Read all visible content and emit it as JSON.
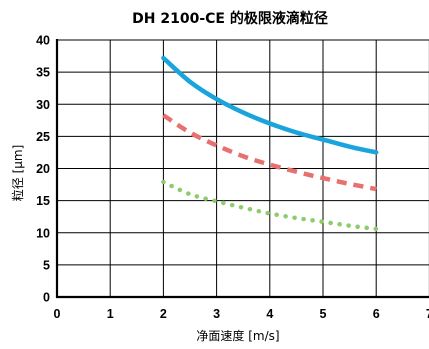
{
  "chart_data": {
    "type": "line",
    "title": "DH 2100-CE 的极限液滴粒径",
    "xlabel": "净面速度 [m/s]",
    "ylabel": "粒径 [μm]",
    "xlim": [
      0,
      7
    ],
    "ylim": [
      0,
      40
    ],
    "x_ticks": [
      "0",
      "1",
      "2",
      "3",
      "4",
      "5",
      "6",
      "7"
    ],
    "y_ticks": [
      "0",
      "5",
      "10",
      "15",
      "20",
      "25",
      "30",
      "35",
      "40"
    ],
    "grid": true,
    "legend": "none",
    "series": [
      {
        "color": "#1aa4dc",
        "style": "solid",
        "points": [
          [
            2.0,
            37.2
          ],
          [
            2.5,
            33.5
          ],
          [
            3.0,
            30.8
          ],
          [
            3.5,
            28.7
          ],
          [
            4.0,
            27.0
          ],
          [
            4.5,
            25.6
          ],
          [
            5.0,
            24.5
          ],
          [
            5.5,
            23.4
          ],
          [
            6.0,
            22.5
          ]
        ]
      },
      {
        "color": "#e8706e",
        "style": "dashed",
        "points": [
          [
            2.0,
            28.3
          ],
          [
            2.5,
            25.6
          ],
          [
            3.0,
            23.6
          ],
          [
            3.5,
            21.9
          ],
          [
            4.0,
            20.6
          ],
          [
            4.5,
            19.5
          ],
          [
            5.0,
            18.5
          ],
          [
            5.5,
            17.6
          ],
          [
            6.0,
            16.8
          ]
        ]
      },
      {
        "color": "#8ccc6c",
        "style": "dotted",
        "points": [
          [
            2.0,
            17.9
          ],
          [
            2.5,
            16.0
          ],
          [
            3.0,
            14.9
          ],
          [
            3.5,
            13.9
          ],
          [
            4.0,
            13.0
          ],
          [
            4.5,
            12.3
          ],
          [
            5.0,
            11.7
          ],
          [
            5.5,
            11.1
          ],
          [
            6.0,
            10.6
          ]
        ]
      }
    ]
  }
}
